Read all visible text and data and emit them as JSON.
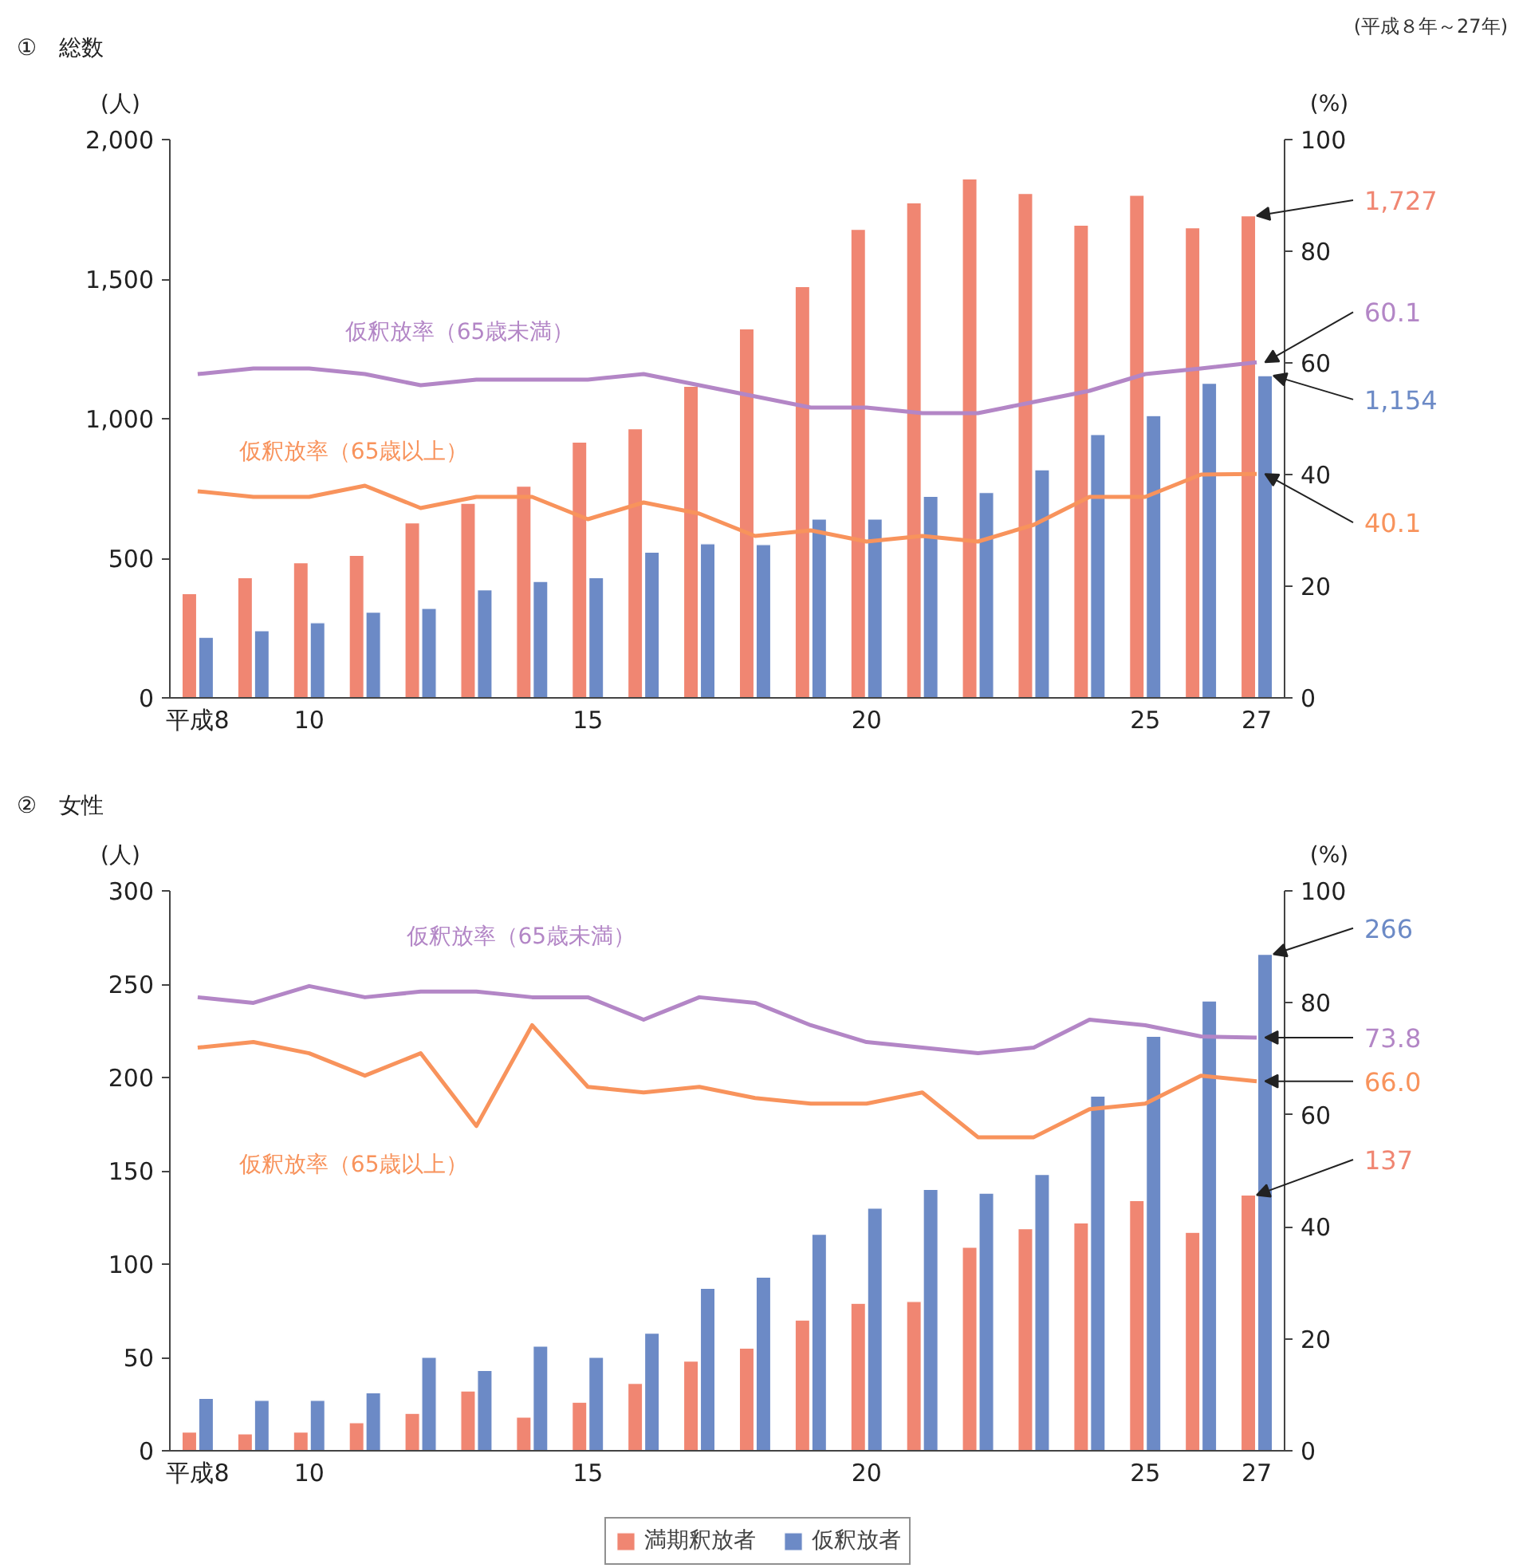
{
  "chart_data": [
    {
      "type": "bar",
      "title": "①　総数",
      "subtitle": "(平成８年～27年)",
      "ylabel": "(人)",
      "y2label": "(%)",
      "categories": [
        "平成8",
        null,
        "10",
        null,
        null,
        null,
        null,
        "15",
        null,
        null,
        null,
        null,
        "20",
        null,
        null,
        null,
        null,
        "25",
        null,
        "27"
      ],
      "ylim": [
        0,
        2000
      ],
      "yticks": [
        0,
        {
          "value": 500,
          "label": "500"
        },
        {
          "value": 1000,
          "label": "1,000"
        },
        {
          "value": 1500,
          "label": "1,500"
        },
        {
          "value": 2000,
          "label": "2,000"
        }
      ],
      "y2lim": [
        0,
        100
      ],
      "y2ticks": [
        0,
        20,
        40,
        60,
        80,
        100
      ],
      "grid": false,
      "legend": false,
      "series": [
        {
          "color": "#f08672",
          "values": [
            373,
            430,
            484,
            510,
            627,
            697,
            758,
            916,
            964,
            1116,
            1322,
            1473,
            1678,
            1773,
            1859,
            1807,
            1693,
            1800,
            1684,
            1727
          ],
          "value_labels": [
            null,
            null,
            null,
            null,
            null,
            null,
            null,
            null,
            null,
            null,
            null,
            null,
            null,
            null,
            null,
            null,
            null,
            null,
            null,
            "1,727"
          ]
        },
        {
          "color": "#6c8ac6",
          "values": [
            217,
            240,
            269,
            307,
            320,
            387,
            417,
            430,
            522,
            552,
            549,
            640,
            640,
            722,
            735,
            817,
            943,
            1011,
            1127,
            1154
          ],
          "value_labels": [
            null,
            null,
            null,
            null,
            null,
            null,
            null,
            null,
            null,
            null,
            null,
            null,
            null,
            null,
            null,
            null,
            null,
            null,
            null,
            "1,154"
          ]
        },
        {
          "type": "line",
          "name": "仮釈放率（65歳未満）",
          "axis": "y2",
          "color": "#b386c6",
          "values": [
            58,
            59,
            59,
            58,
            56,
            57,
            57,
            57,
            58,
            56,
            54,
            52,
            52,
            51,
            51,
            53,
            55,
            58,
            59,
            60.1
          ],
          "value_labels": [
            null,
            null,
            null,
            null,
            null,
            null,
            null,
            null,
            null,
            null,
            null,
            null,
            null,
            null,
            null,
            null,
            null,
            null,
            null,
            "60.1"
          ]
        },
        {
          "type": "line",
          "name": "仮釈放率（65歳以上）",
          "axis": "y2",
          "color": "#f8935c",
          "values": [
            37,
            36,
            36,
            38,
            34,
            36,
            36,
            32,
            35,
            33,
            29,
            30,
            28,
            29,
            28,
            31,
            36,
            36,
            40,
            40.1
          ],
          "value_labels": [
            null,
            null,
            null,
            null,
            null,
            null,
            null,
            null,
            null,
            null,
            null,
            null,
            null,
            null,
            null,
            null,
            null,
            null,
            null,
            "40.1"
          ]
        }
      ]
    },
    {
      "type": "bar",
      "title": "②　女性",
      "ylabel": "(人)",
      "y2label": "(%)",
      "categories": [
        "平成8",
        null,
        "10",
        null,
        null,
        null,
        null,
        "15",
        null,
        null,
        null,
        null,
        "20",
        null,
        null,
        null,
        null,
        "25",
        null,
        "27"
      ],
      "ylim": [
        0,
        300
      ],
      "yticks": [
        0,
        50,
        100,
        150,
        200,
        250,
        300
      ],
      "y2lim": [
        0,
        100
      ],
      "y2ticks": [
        0,
        20,
        40,
        60,
        80,
        100
      ],
      "grid": false,
      "legend": "bottom",
      "series": [
        {
          "name": "満期釈放者",
          "color": "#f08672",
          "values": [
            10,
            9,
            10,
            15,
            20,
            32,
            18,
            26,
            36,
            48,
            55,
            70,
            79,
            80,
            109,
            119,
            122,
            134,
            117,
            137
          ],
          "value_labels": [
            null,
            null,
            null,
            null,
            null,
            null,
            null,
            null,
            null,
            null,
            null,
            null,
            null,
            null,
            null,
            null,
            null,
            null,
            null,
            "137"
          ]
        },
        {
          "name": "仮釈放者",
          "color": "#6c8ac6",
          "values": [
            28,
            27,
            27,
            31,
            50,
            43,
            56,
            50,
            63,
            87,
            93,
            116,
            130,
            140,
            138,
            148,
            190,
            222,
            241,
            266
          ],
          "value_labels": [
            null,
            null,
            null,
            null,
            null,
            null,
            null,
            null,
            null,
            null,
            null,
            null,
            null,
            null,
            null,
            null,
            null,
            null,
            null,
            "266"
          ]
        },
        {
          "type": "line",
          "name": "仮釈放率（65歳未満）",
          "axis": "y2",
          "color": "#b386c6",
          "values": [
            81,
            80,
            83,
            81,
            82,
            82,
            81,
            81,
            77,
            81,
            80,
            76,
            73,
            72,
            71,
            72,
            77,
            76,
            74,
            73.8
          ],
          "value_labels": [
            null,
            null,
            null,
            null,
            null,
            null,
            null,
            null,
            null,
            null,
            null,
            null,
            null,
            null,
            null,
            null,
            null,
            null,
            null,
            "73.8"
          ]
        },
        {
          "type": "line",
          "name": "仮釈放率（65歳以上）",
          "axis": "y2",
          "color": "#f8935c",
          "values": [
            72,
            73,
            71,
            67,
            71,
            58,
            76,
            65,
            64,
            65,
            63,
            62,
            62,
            64,
            56,
            56,
            61,
            62,
            67,
            66.0
          ],
          "value_labels": [
            null,
            null,
            null,
            null,
            null,
            null,
            null,
            null,
            null,
            null,
            null,
            null,
            null,
            null,
            null,
            null,
            null,
            null,
            null,
            "66.0"
          ]
        }
      ]
    }
  ]
}
